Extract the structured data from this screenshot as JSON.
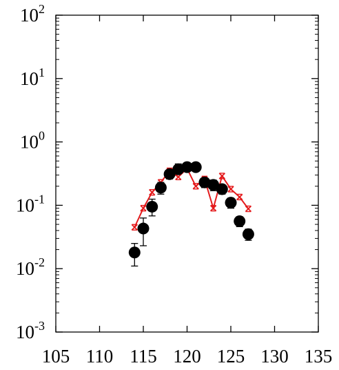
{
  "chart_data": {
    "type": "scatter",
    "title": "",
    "xlabel": "",
    "ylabel": "",
    "xlim": [
      105,
      135
    ],
    "ylim": [
      0.001,
      100
    ],
    "yscale": "log",
    "grid": false,
    "legend": "none",
    "x_ticks": [
      105,
      110,
      115,
      120,
      125,
      130,
      135
    ],
    "x_tick_labels": [
      "105",
      "110",
      "115",
      "120",
      "125",
      "130",
      "135"
    ],
    "y_ticks": [
      0.001,
      0.01,
      0.1,
      1,
      10,
      100
    ],
    "y_tick_labels": [
      {
        "base": "10",
        "exp": "-3"
      },
      {
        "base": "10",
        "exp": "-2"
      },
      {
        "base": "10",
        "exp": "-1"
      },
      {
        "base": "10",
        "exp": "0"
      },
      {
        "base": "10",
        "exp": "1"
      },
      {
        "base": "10",
        "exp": "2"
      }
    ],
    "series": [
      {
        "style": "points",
        "color": "#000000",
        "x": [
          114,
          115,
          116,
          117,
          118,
          119,
          120,
          121,
          122,
          123,
          124,
          125,
          126,
          127
        ],
        "y": [
          0.018,
          0.043,
          0.095,
          0.19,
          0.31,
          0.37,
          0.4,
          0.4,
          0.23,
          0.21,
          0.18,
          0.11,
          0.056,
          0.035
        ],
        "yerr_low": [
          0.011,
          0.023,
          0.068,
          0.15,
          0.26,
          0.32,
          0.36,
          0.36,
          0.19,
          0.17,
          0.15,
          0.09,
          0.046,
          0.028
        ],
        "yerr_high": [
          0.025,
          0.063,
          0.125,
          0.23,
          0.36,
          0.45,
          0.44,
          0.44,
          0.27,
          0.25,
          0.21,
          0.13,
          0.066,
          0.042
        ]
      },
      {
        "style": "line-markers",
        "color": "#e41a1c",
        "x": [
          114,
          115,
          116,
          117,
          118,
          119,
          120,
          121,
          122,
          123,
          124,
          125,
          126,
          127
        ],
        "y": [
          0.045,
          0.09,
          0.16,
          0.23,
          0.35,
          0.28,
          0.38,
          0.2,
          0.26,
          0.09,
          0.29,
          0.18,
          0.135,
          0.088
        ]
      }
    ]
  }
}
